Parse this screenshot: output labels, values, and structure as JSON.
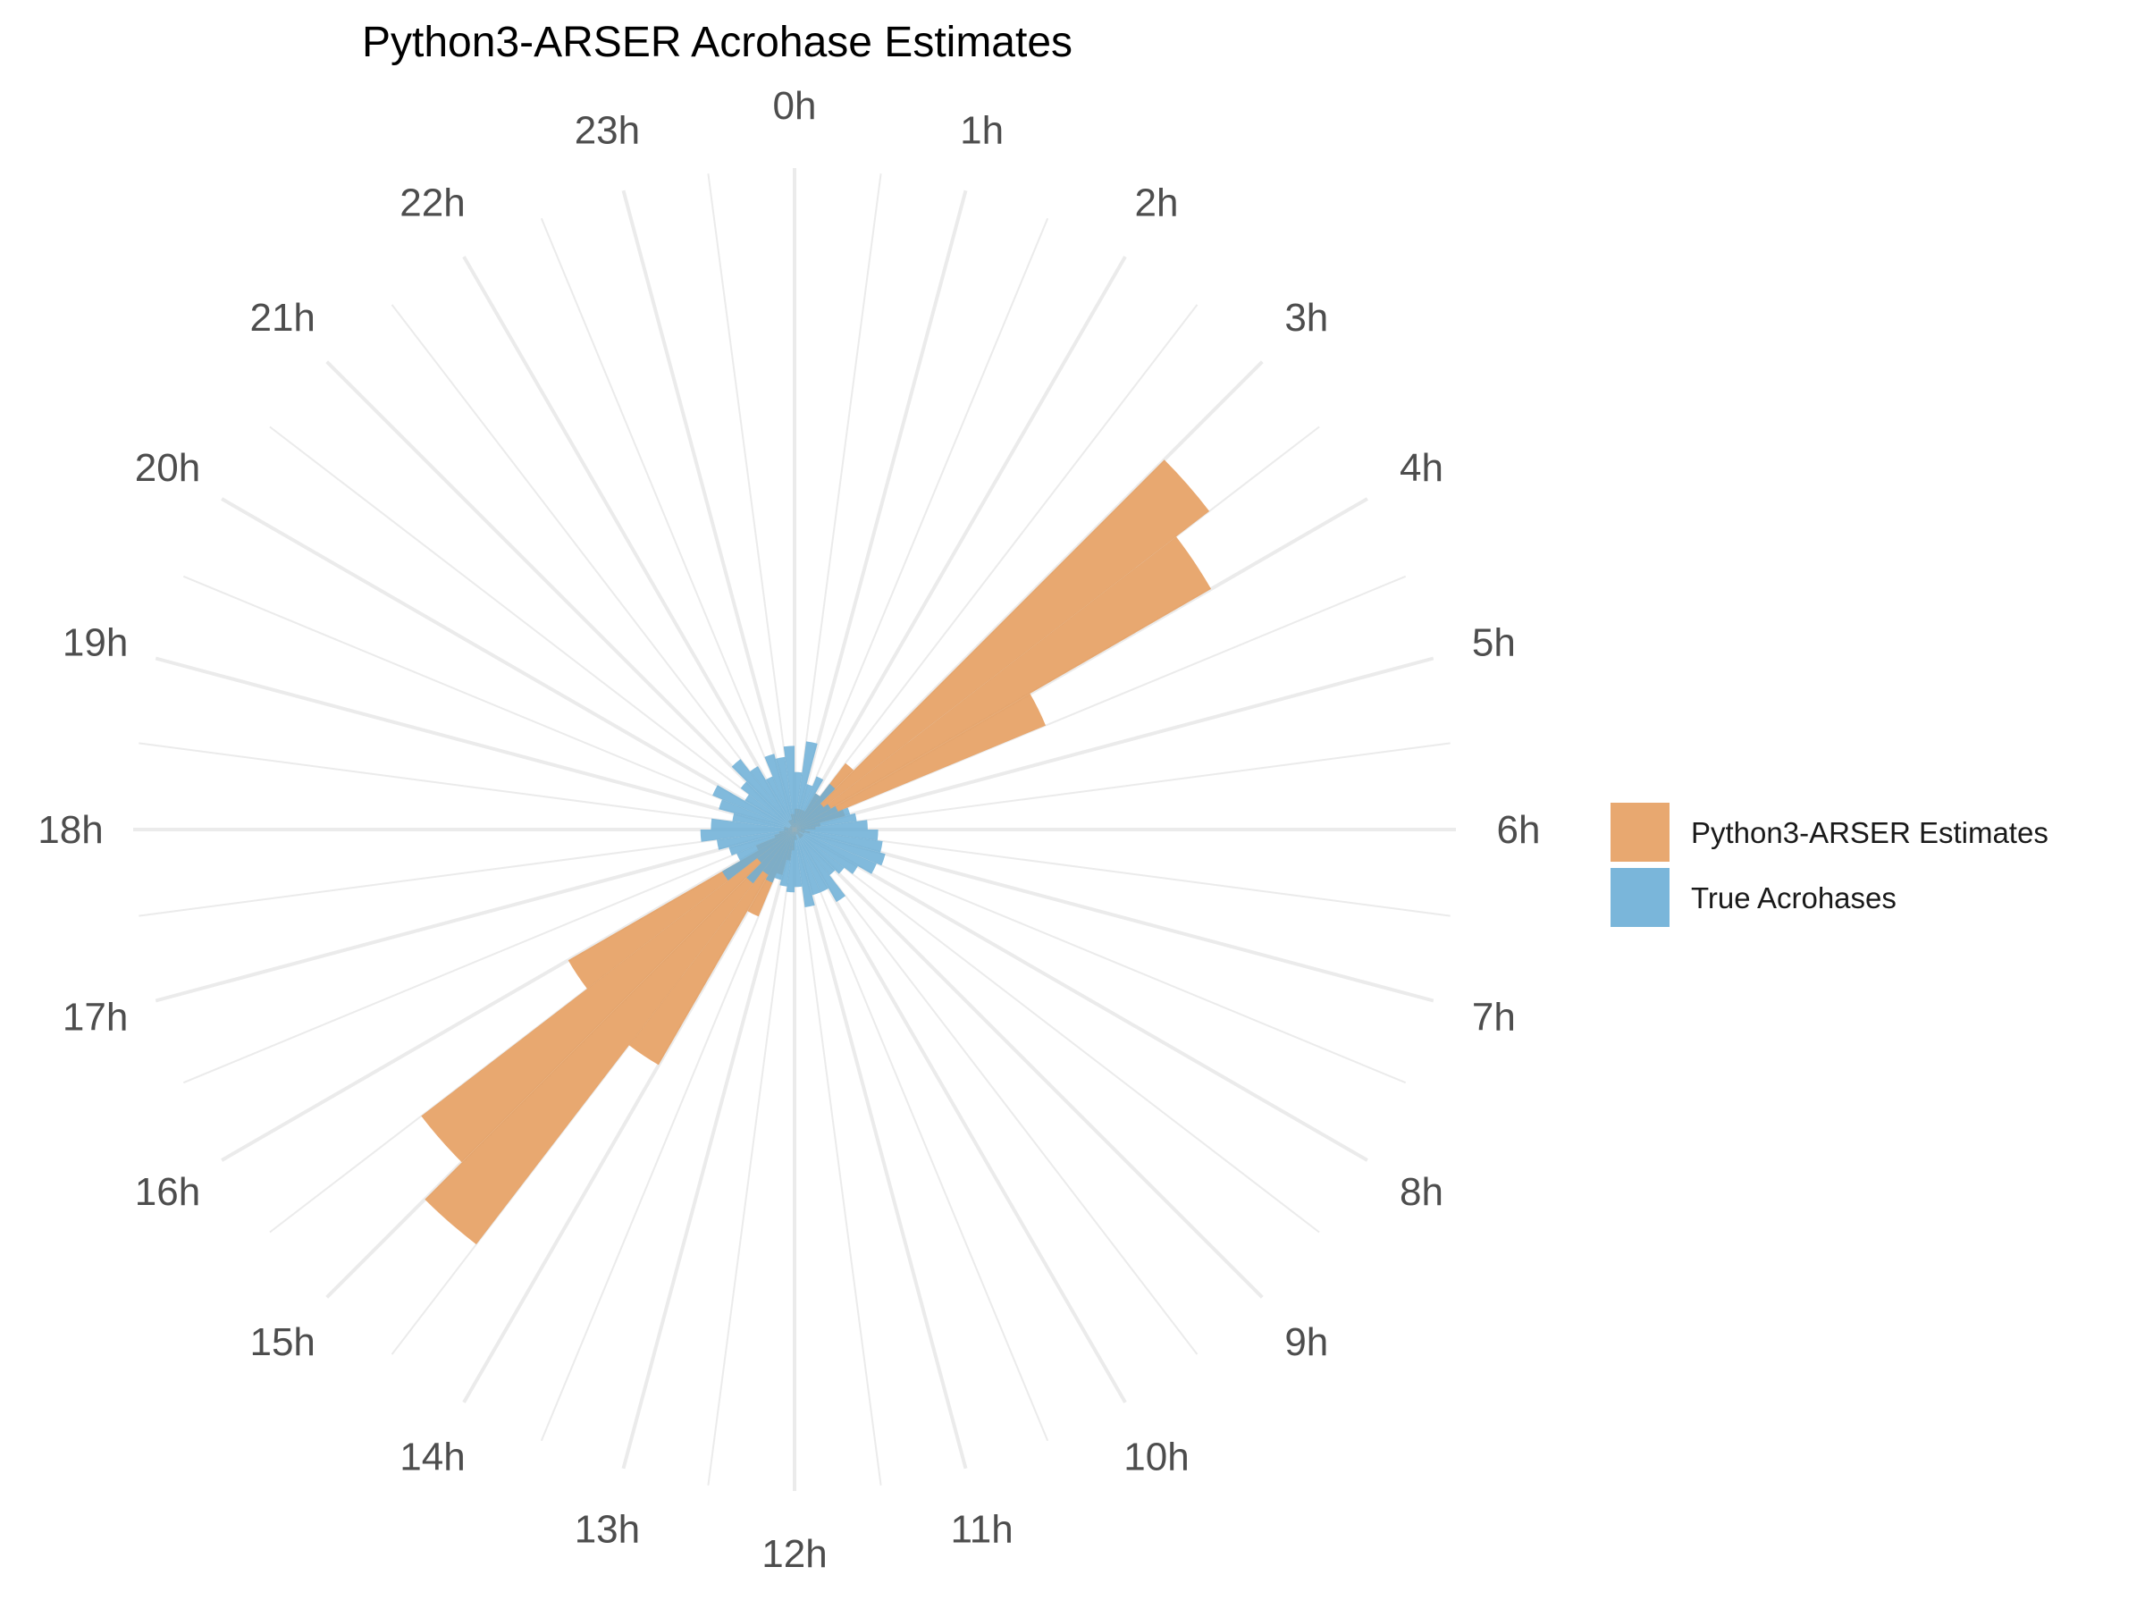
{
  "chart_data": {
    "type": "polar-histogram",
    "title": "Python3-ARSER Acrohase Estimates",
    "bins_per_hour": 2,
    "angle_unit": "hours",
    "hour_labels": [
      "0h",
      "1h",
      "2h",
      "3h",
      "4h",
      "5h",
      "6h",
      "7h",
      "8h",
      "9h",
      "10h",
      "11h",
      "12h",
      "13h",
      "14h",
      "15h",
      "16h",
      "17h",
      "18h",
      "19h",
      "20h",
      "21h",
      "22h",
      "23h"
    ],
    "legend_position": "right",
    "series": [
      {
        "name": "Python3-ARSER Estimates",
        "color": "#e69f61",
        "values": [
          4,
          4,
          4,
          4,
          8,
          16,
          100,
          92,
          52,
          10,
          5,
          4,
          2,
          3,
          2,
          1,
          2,
          2,
          2,
          2,
          1,
          1,
          2,
          2,
          4,
          6,
          9,
          18,
          52,
          100,
          90,
          50,
          8,
          4,
          3,
          2,
          2,
          2,
          1,
          1,
          1,
          1,
          1,
          2,
          2,
          2,
          3,
          3
        ]
      },
      {
        "name": "True Acrohases",
        "color": "#6baed6",
        "values": [
          11,
          17,
          9,
          11,
          8,
          11,
          7,
          8,
          9,
          11,
          12,
          14,
          16,
          17,
          18,
          17,
          14,
          12,
          11,
          16,
          13,
          13,
          15,
          11,
          12,
          11,
          10,
          11,
          10,
          13,
          9,
          16,
          12,
          13,
          15,
          18,
          16,
          12,
          15,
          17,
          11,
          13,
          17,
          14,
          11,
          15,
          14,
          16
        ]
      }
    ]
  }
}
